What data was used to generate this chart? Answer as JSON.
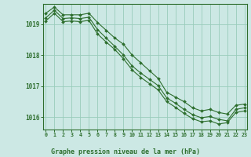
{
  "title": "Graphe pression niveau de la mer (hPa)",
  "bg_color": "#cce8e4",
  "grid_color": "#99ccbb",
  "line_color": "#2d6e2d",
  "ylim": [
    1015.6,
    1019.65
  ],
  "xlim": [
    -0.3,
    23.3
  ],
  "yticks": [
    1016,
    1017,
    1018,
    1019
  ],
  "xticks": [
    0,
    1,
    2,
    3,
    4,
    5,
    6,
    7,
    8,
    9,
    10,
    11,
    12,
    13,
    14,
    15,
    16,
    17,
    18,
    19,
    20,
    21,
    22,
    23
  ],
  "series": [
    [
      1019.35,
      1019.55,
      1019.3,
      1019.3,
      1019.3,
      1019.35,
      1019.05,
      1018.8,
      1018.55,
      1018.35,
      1018.0,
      1017.75,
      1017.5,
      1017.25,
      1016.8,
      1016.65,
      1016.5,
      1016.3,
      1016.2,
      1016.25,
      1016.15,
      1016.1,
      1016.38,
      1016.42
    ],
    [
      1019.2,
      1019.45,
      1019.18,
      1019.2,
      1019.18,
      1019.22,
      1018.82,
      1018.55,
      1018.28,
      1018.0,
      1017.65,
      1017.42,
      1017.22,
      1017.02,
      1016.62,
      1016.45,
      1016.25,
      1016.08,
      1015.98,
      1016.02,
      1015.93,
      1015.88,
      1016.25,
      1016.3
    ],
    [
      1019.1,
      1019.35,
      1019.08,
      1019.1,
      1019.08,
      1019.12,
      1018.68,
      1018.42,
      1018.18,
      1017.88,
      1017.52,
      1017.28,
      1017.08,
      1016.88,
      1016.5,
      1016.32,
      1016.12,
      1015.95,
      1015.85,
      1015.88,
      1015.78,
      1015.82,
      1016.15,
      1016.2
    ]
  ]
}
